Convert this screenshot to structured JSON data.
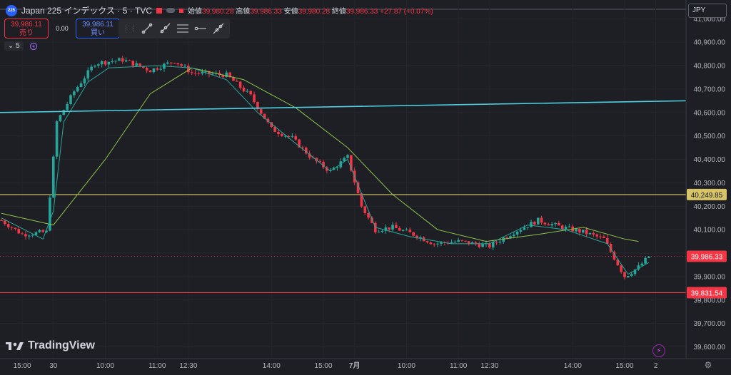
{
  "legend": {
    "badge": "225",
    "symbol": "Japan 225 インデックス · 5 · TVC",
    "open_label": "始値",
    "open": "39,980.28",
    "high_label": "高値",
    "high": "39,986.33",
    "low_label": "安値",
    "low": "39,980.28",
    "close_label": "終値",
    "close": "39,986.33",
    "change": "+27.87 (+0.07%)"
  },
  "trade": {
    "sell_price": "39,986.11",
    "sell_label": "売り",
    "spread": "0.00",
    "buy_price": "39,986.11",
    "buy_label": "買い"
  },
  "interval": {
    "label": "5"
  },
  "currency": "JPY",
  "logo": "TradingView",
  "colors": {
    "background": "#1e1f24",
    "up": "#26a69a",
    "down": "#f23645",
    "ma_fast": "#26a69a",
    "ma_slow": "#8bc34a",
    "trendline": "#4dd0e1",
    "yellow_line": "#d7c468",
    "red_line": "#f23645"
  },
  "icons": [
    "trend-line-icon",
    "ray-icon",
    "parallel-channel-icon",
    "horizontal-ray-icon",
    "extended-line-icon",
    "zap-icon",
    "settings-icon"
  ],
  "chart_data": {
    "type": "candlestick",
    "ylim": [
      39550,
      41080
    ],
    "y_ticks": [
      39600,
      39700,
      39800,
      39900,
      40000,
      40100,
      40200,
      40300,
      40400,
      40500,
      40600,
      40700,
      40800,
      40900,
      41000
    ],
    "y_tick_labels": [
      "39,600.00",
      "39,700.00",
      "39,800.00",
      "39,900.00",
      "40,000.00",
      "40,100.00",
      "40,200.00",
      "40,300.00",
      "40,400.00",
      "40,500.00",
      "40,600.00",
      "40,700.00",
      "40,800.00",
      "40,900.00",
      "41,000.00"
    ],
    "x_labels": [
      {
        "i": 6,
        "label": "15:00"
      },
      {
        "i": 15,
        "label": "30"
      },
      {
        "i": 30,
        "label": "10:00"
      },
      {
        "i": 45,
        "label": "11:00"
      },
      {
        "i": 54,
        "label": "12:30"
      },
      {
        "i": 78,
        "label": "14:00"
      },
      {
        "i": 93,
        "label": "15:00"
      },
      {
        "i": 102,
        "label": "7月"
      },
      {
        "i": 117,
        "label": "10:00"
      },
      {
        "i": 132,
        "label": "11:00"
      },
      {
        "i": 141,
        "label": "12:30"
      },
      {
        "i": 165,
        "label": "14:00"
      },
      {
        "i": 180,
        "label": "15:00"
      },
      {
        "i": 189,
        "label": "2"
      }
    ],
    "candle_count": 188,
    "anchors": [
      {
        "i": 0,
        "v": 40140
      },
      {
        "i": 6,
        "v": 40080
      },
      {
        "i": 13,
        "v": 40090
      },
      {
        "i": 16,
        "v": 40560
      },
      {
        "i": 21,
        "v": 40690
      },
      {
        "i": 27,
        "v": 40810
      },
      {
        "i": 35,
        "v": 40825
      },
      {
        "i": 43,
        "v": 40780
      },
      {
        "i": 50,
        "v": 40820
      },
      {
        "i": 55,
        "v": 40770
      },
      {
        "i": 65,
        "v": 40760
      },
      {
        "i": 72,
        "v": 40670
      },
      {
        "i": 78,
        "v": 40530
      },
      {
        "i": 84,
        "v": 40490
      },
      {
        "i": 90,
        "v": 40400
      },
      {
        "i": 95,
        "v": 40350
      },
      {
        "i": 100,
        "v": 40410
      },
      {
        "i": 104,
        "v": 40200
      },
      {
        "i": 108,
        "v": 40100
      },
      {
        "i": 113,
        "v": 40110
      },
      {
        "i": 119,
        "v": 40080
      },
      {
        "i": 125,
        "v": 40040
      },
      {
        "i": 132,
        "v": 40050
      },
      {
        "i": 141,
        "v": 40030
      },
      {
        "i": 148,
        "v": 40090
      },
      {
        "i": 155,
        "v": 40140
      },
      {
        "i": 162,
        "v": 40110
      },
      {
        "i": 168,
        "v": 40090
      },
      {
        "i": 174,
        "v": 40060
      },
      {
        "i": 180,
        "v": 39900
      },
      {
        "i": 184,
        "v": 39940
      },
      {
        "i": 187,
        "v": 39986
      }
    ],
    "ma_fast": [
      {
        "i": 0,
        "v": 40150
      },
      {
        "i": 12,
        "v": 40060
      },
      {
        "i": 15,
        "v": 40180
      },
      {
        "i": 18,
        "v": 40560
      },
      {
        "i": 25,
        "v": 40730
      },
      {
        "i": 31,
        "v": 40790
      },
      {
        "i": 45,
        "v": 40800
      },
      {
        "i": 55,
        "v": 40790
      },
      {
        "i": 65,
        "v": 40740
      },
      {
        "i": 74,
        "v": 40600
      },
      {
        "i": 84,
        "v": 40480
      },
      {
        "i": 95,
        "v": 40350
      },
      {
        "i": 100,
        "v": 40400
      },
      {
        "i": 108,
        "v": 40110
      },
      {
        "i": 118,
        "v": 40070
      },
      {
        "i": 130,
        "v": 40040
      },
      {
        "i": 141,
        "v": 40040
      },
      {
        "i": 152,
        "v": 40120
      },
      {
        "i": 163,
        "v": 40100
      },
      {
        "i": 175,
        "v": 40040
      },
      {
        "i": 181,
        "v": 39910
      },
      {
        "i": 187,
        "v": 39960
      }
    ],
    "ma_slow": [
      {
        "i": 0,
        "v": 40170
      },
      {
        "i": 15,
        "v": 40120
      },
      {
        "i": 30,
        "v": 40400
      },
      {
        "i": 43,
        "v": 40680
      },
      {
        "i": 55,
        "v": 40790
      },
      {
        "i": 70,
        "v": 40740
      },
      {
        "i": 85,
        "v": 40620
      },
      {
        "i": 100,
        "v": 40450
      },
      {
        "i": 113,
        "v": 40250
      },
      {
        "i": 126,
        "v": 40100
      },
      {
        "i": 140,
        "v": 40050
      },
      {
        "i": 155,
        "v": 40080
      },
      {
        "i": 168,
        "v": 40110
      },
      {
        "i": 180,
        "v": 40060
      },
      {
        "i": 184,
        "v": 40050
      }
    ],
    "trendline": {
      "start": {
        "i": 0,
        "v": 40600
      },
      "end": {
        "i": 190,
        "v": 40650
      }
    },
    "horizontal_lines": [
      {
        "name": "yellow",
        "value": 40249.85,
        "label": "40,249.85",
        "color": "#d7c468"
      },
      {
        "name": "red",
        "value": 39831.54,
        "label": "39,831.54",
        "color": "#f23645"
      }
    ],
    "last_price": {
      "value": 39986.33,
      "label": "39,986.33"
    }
  }
}
